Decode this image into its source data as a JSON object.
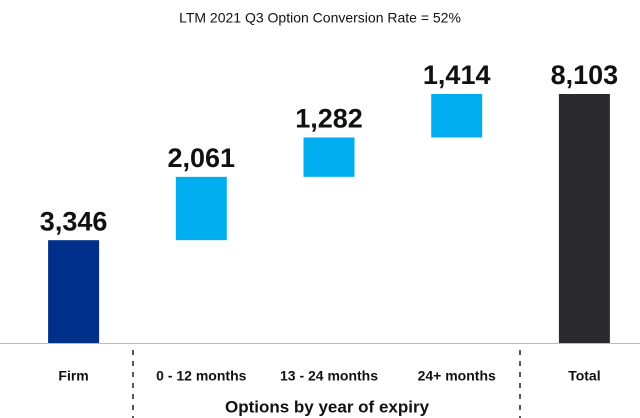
{
  "chart_data": {
    "type": "waterfall",
    "title": "LTM 2021 Q3 Option Conversion Rate = 52%",
    "xlabel": "Options by year of expiry",
    "categories": [
      "Firm",
      "0 - 12 months",
      "13 - 24 months",
      "24+ months",
      "Total"
    ],
    "values": [
      3346,
      2061,
      1282,
      1414,
      8103
    ],
    "value_labels": [
      "3,346",
      "2,061",
      "1,282",
      "1,414",
      "8,103"
    ],
    "colors": [
      "#00308a",
      "#00aeef",
      "#00aeef",
      "#00aeef",
      "#2a2a2e"
    ]
  }
}
